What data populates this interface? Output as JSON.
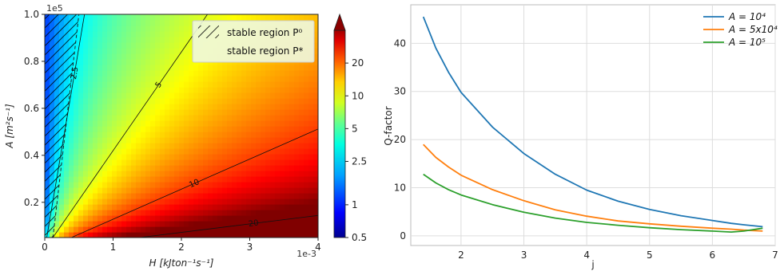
{
  "chart_data": [
    {
      "type": "heatmap",
      "title": "",
      "xlabel": "H   [kJton⁻¹s⁻¹]",
      "ylabel": "A   [m²s⁻¹]",
      "x_scale_label": "1e-3",
      "y_scale_label": "1e5",
      "xlim": [
        0,
        4
      ],
      "ylim": [
        0.05,
        1.0
      ],
      "x_ticks": [
        "0",
        "1",
        "2",
        "3",
        "4"
      ],
      "y_ticks": [
        "0.2",
        "0.4",
        "0.6",
        "0.8",
        "1.0"
      ],
      "colorbar": {
        "scale": "log",
        "range": [
          0.5,
          40
        ],
        "ticks": [
          "0.5",
          "1",
          "2.5",
          "5",
          "10",
          "20"
        ],
        "extend": "max",
        "colormap": "jet"
      },
      "contours": [
        {
          "label": "2.5",
          "slope_A_per_H": 1.72
        },
        {
          "label": "5",
          "slope_A_per_H": 0.42
        },
        {
          "label": "10",
          "slope_A_per_H": 0.128
        },
        {
          "label": "20",
          "slope_A_per_H": 0.036
        }
      ],
      "legend": {
        "position": "top-right",
        "entries": [
          "stable region P⁰",
          "stable region P*"
        ]
      }
    },
    {
      "type": "line",
      "title": "",
      "xlabel": "j",
      "ylabel": "Q-factor",
      "xlim": [
        1.2,
        7.0
      ],
      "ylim": [
        -2,
        48
      ],
      "x_ticks": [
        "2",
        "3",
        "4",
        "5",
        "6",
        "7"
      ],
      "y_ticks": [
        "0",
        "10",
        "20",
        "30",
        "40"
      ],
      "grid": true,
      "legend_position": "top-right",
      "x": [
        1.4,
        1.6,
        1.8,
        2.0,
        2.5,
        3.0,
        3.5,
        4.0,
        4.5,
        5.0,
        5.5,
        6.0,
        6.3,
        6.5,
        6.8
      ],
      "series": [
        {
          "name": "A = 10⁴",
          "color": "#1f77b4",
          "values": [
            45.5,
            39.0,
            34.0,
            29.8,
            22.6,
            17.1,
            12.8,
            9.5,
            7.2,
            5.5,
            4.2,
            3.2,
            2.6,
            2.3,
            1.9
          ]
        },
        {
          "name": "A = 5x10⁴",
          "color": "#ff7f0e",
          "values": [
            19.0,
            16.3,
            14.3,
            12.6,
            9.6,
            7.3,
            5.4,
            4.1,
            3.1,
            2.5,
            2.0,
            1.6,
            1.4,
            1.2,
            1.0
          ]
        },
        {
          "name": "A = 10⁵",
          "color": "#2ca02c",
          "values": [
            12.8,
            11.0,
            9.6,
            8.5,
            6.5,
            4.9,
            3.7,
            2.8,
            2.2,
            1.7,
            1.3,
            1.0,
            0.8,
            1.0,
            1.6
          ]
        }
      ]
    }
  ]
}
